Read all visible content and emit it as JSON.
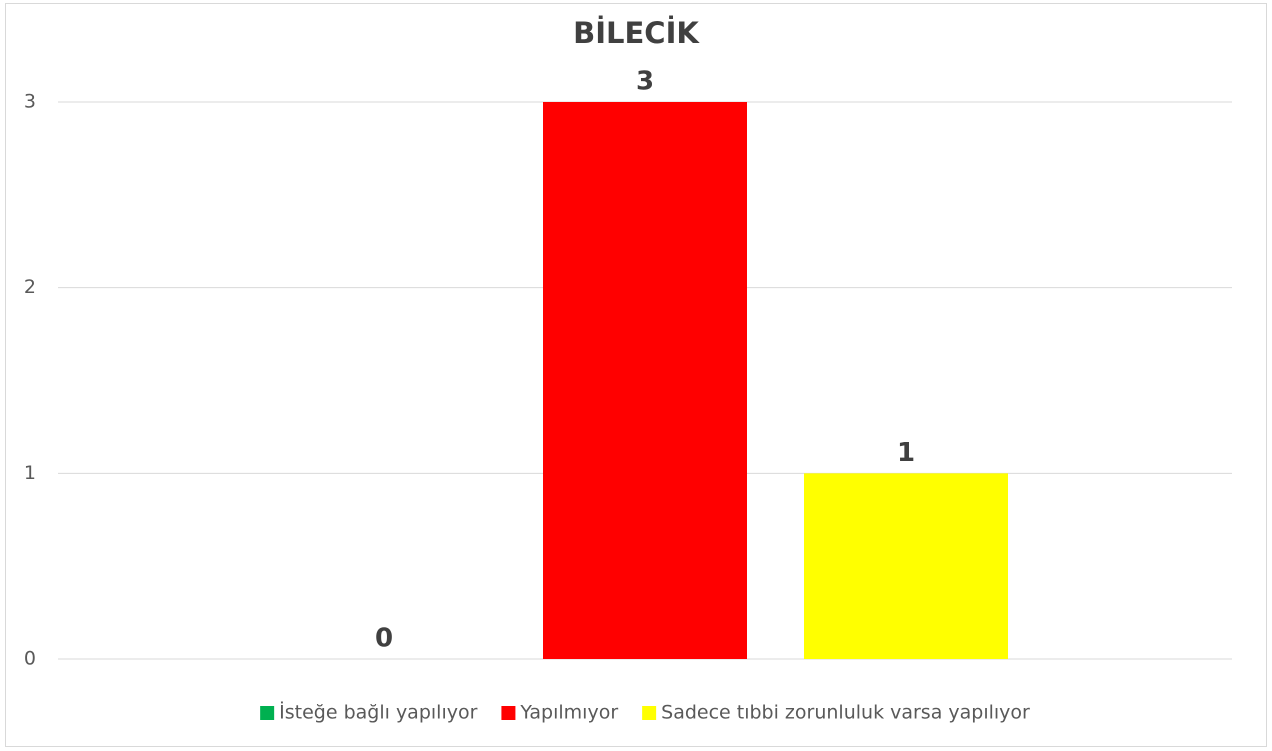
{
  "chart_data": {
    "type": "bar",
    "title": "BİLECİK",
    "categories": [
      null
    ],
    "series": [
      {
        "name": "İsteğe bağlı yapılıyor",
        "color": "#00b050",
        "values": [
          0
        ]
      },
      {
        "name": "Yapılmıyor",
        "color": "#ff0000",
        "values": [
          3
        ]
      },
      {
        "name": "Sadece tıbbi zorunluluk varsa yapılıyor",
        "color": "#ffff00",
        "values": [
          1
        ]
      }
    ],
    "ylim": [
      0,
      3
    ],
    "yticks": [
      0,
      1,
      2,
      3
    ],
    "grid": true,
    "legend": "bottom"
  }
}
